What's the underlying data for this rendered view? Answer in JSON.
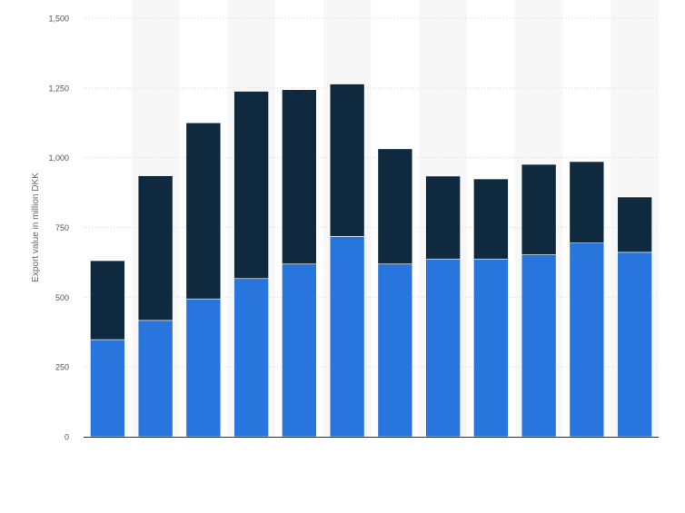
{
  "chart_data": {
    "type": "bar",
    "stacked": true,
    "categories": [
      "",
      "",
      "",
      "",
      "",
      "",
      "",
      "",
      "",
      "",
      "",
      ""
    ],
    "series": [
      {
        "color": "#2876dd",
        "values": [
          348,
          417,
          494,
          567,
          619,
          718,
          619,
          637,
          637,
          652,
          694,
          661
        ]
      },
      {
        "color": "#0f2a3f",
        "values": [
          283,
          518,
          631,
          671,
          625,
          546,
          413,
          297,
          287,
          324,
          292,
          198
        ]
      }
    ],
    "ylabel": "Export value in million DKK",
    "ylim": [
      0,
      1500
    ],
    "yticks": [
      0,
      250,
      500,
      750,
      1000,
      1250,
      1500
    ],
    "ytick_labels": [
      "0",
      "250",
      "500",
      "750",
      "1,000",
      "1,250",
      "1,500"
    ],
    "grid": true,
    "legend": "none"
  }
}
